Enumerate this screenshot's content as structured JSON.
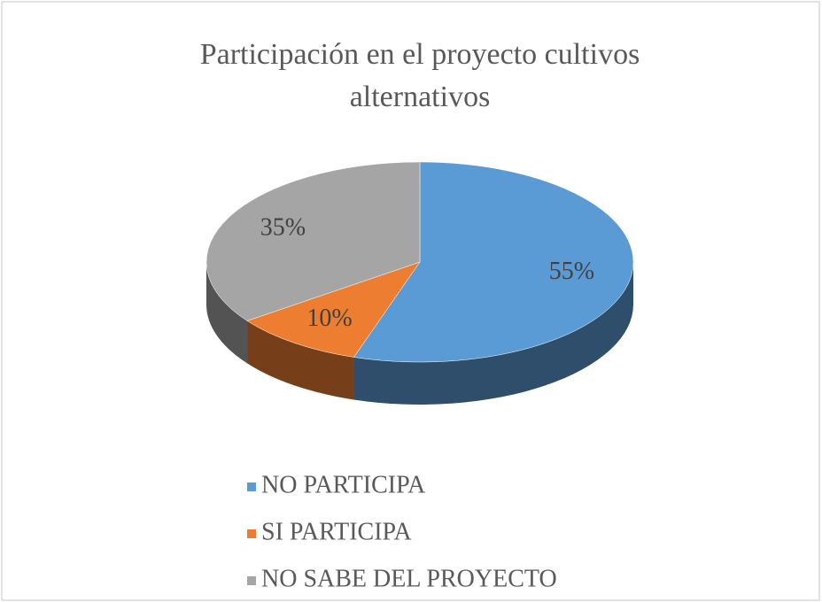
{
  "chart_data": {
    "type": "pie",
    "title": "Participación en el proyecto cultivos alternativos",
    "categories": [
      "NO PARTICIPA",
      "SI PARTICIPA",
      "NO SABE DEL PROYECTO"
    ],
    "values": [
      55,
      10,
      35
    ],
    "value_labels": [
      "55%",
      "10%",
      "35%"
    ],
    "colors": [
      "#5b9bd5",
      "#ed7d31",
      "#a5a5a5"
    ],
    "legend": "bottom"
  }
}
